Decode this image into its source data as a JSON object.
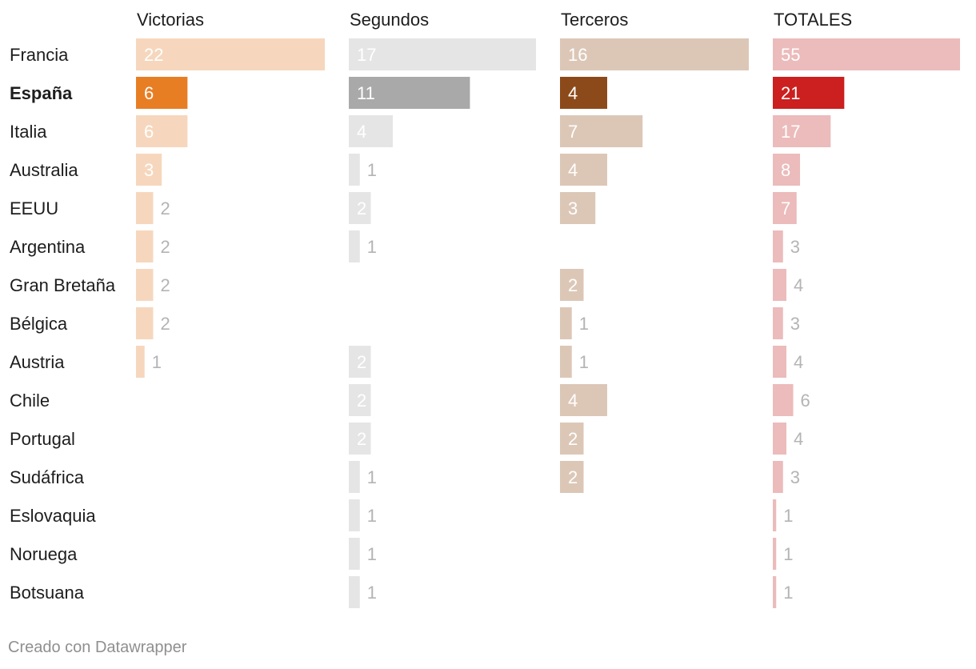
{
  "chart_data": {
    "type": "bar",
    "categories": [
      "Francia",
      "España",
      "Italia",
      "Australia",
      "EEUU",
      "Argentina",
      "Gran Bretaña",
      "Bélgica",
      "Austria",
      "Chile",
      "Portugal",
      "Sudáfrica",
      "Eslovaquia",
      "Noruega",
      "Botsuana"
    ],
    "highlight": "España",
    "series": [
      {
        "name": "Victorias",
        "values": [
          22,
          6,
          6,
          3,
          2,
          2,
          2,
          2,
          1,
          null,
          null,
          null,
          null,
          null,
          null
        ],
        "max": 22,
        "color": "#f6d7bd",
        "highlight_color": "#e87e24"
      },
      {
        "name": "Segundos",
        "values": [
          17,
          11,
          4,
          1,
          2,
          1,
          null,
          null,
          2,
          2,
          2,
          1,
          1,
          1,
          1
        ],
        "max": 17,
        "color": "#e5e5e5",
        "highlight_color": "#a9a9a9"
      },
      {
        "name": "Terceros",
        "values": [
          16,
          4,
          7,
          4,
          3,
          null,
          2,
          1,
          1,
          4,
          2,
          2,
          null,
          null,
          null
        ],
        "max": 16,
        "color": "#dcc7b7",
        "highlight_color": "#8c4a1a"
      },
      {
        "name": "TOTALES",
        "values": [
          55,
          21,
          17,
          8,
          7,
          3,
          4,
          3,
          4,
          6,
          4,
          3,
          1,
          1,
          1
        ],
        "max": 55,
        "color": "#ecbbbb",
        "highlight_color": "#cc1f1f"
      }
    ]
  },
  "footer": {
    "credit": "Creado con Datawrapper"
  }
}
